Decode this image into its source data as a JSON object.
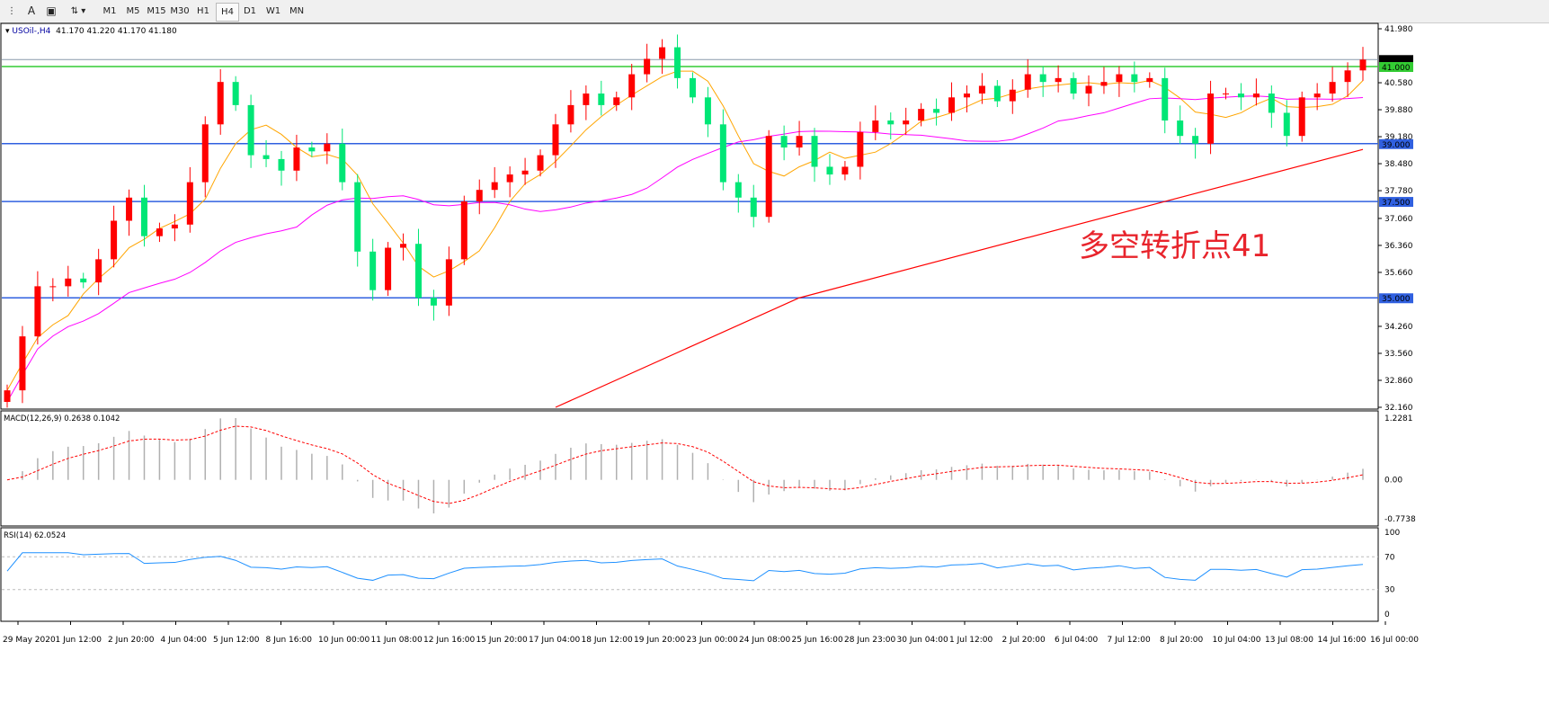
{
  "toolbar": {
    "icons": [
      "fibonacci-icon",
      "text-icon",
      "text-label-icon",
      "arrows-icon"
    ],
    "timeframes": [
      "M1",
      "M5",
      "M15",
      "M30",
      "H1",
      "H4",
      "D1",
      "W1",
      "MN"
    ],
    "active": "H4"
  },
  "header": {
    "symbol": "USOil-,H4",
    "ohlc": "41.170 41.220 41.170 41.180"
  },
  "annotation": "多空转折点41",
  "colors": {
    "bull": "#ff0000",
    "bear": "#00e676",
    "ma_fast": "#ffa500",
    "ma_mid": "#ff00ff",
    "ma_slow": "#ff0000",
    "level": "#3060e0",
    "level_green": "#33cc33",
    "rsi": "#1e90ff"
  },
  "chart_data": {
    "type": "candlestick",
    "price_axis": {
      "ticks": [
        "41.980",
        "40.580",
        "39.880",
        "39.180",
        "38.480",
        "37.780",
        "37.060",
        "36.360",
        "35.660",
        "34.260",
        "33.560",
        "32.860",
        "32.160"
      ],
      "range": [
        32.16,
        41.98
      ]
    },
    "closes": [
      32.6,
      34.0,
      35.3,
      35.3,
      35.5,
      35.4,
      36.0,
      37.0,
      37.6,
      36.6,
      36.8,
      36.9,
      38.0,
      39.5,
      40.6,
      40.0,
      38.7,
      38.6,
      38.3,
      38.9,
      38.8,
      39.0,
      38.0,
      36.2,
      35.2,
      36.3,
      36.4,
      35.0,
      34.8,
      36.0,
      37.5,
      37.8,
      38.0,
      38.2,
      38.3,
      38.7,
      39.5,
      40.0,
      40.3,
      40.0,
      40.2,
      40.8,
      41.2,
      41.5,
      40.7,
      40.2,
      39.5,
      38.0,
      37.6,
      37.1,
      39.2,
      38.9,
      39.2,
      38.4,
      38.2,
      38.4,
      39.3,
      39.6,
      39.5,
      39.6,
      39.9,
      39.8,
      40.2,
      40.3,
      40.5,
      40.1,
      40.4,
      40.8,
      40.6,
      40.7,
      40.3,
      40.5,
      40.6,
      40.8,
      40.6,
      40.7,
      39.6,
      39.2,
      39.0,
      40.3,
      40.3,
      40.2,
      40.3,
      39.8,
      39.2,
      40.2,
      40.3,
      40.6,
      40.9,
      41.18
    ],
    "ma_slow": [
      [
        0,
        30.2
      ],
      [
        20,
        31.2
      ],
      [
        36,
        32.16
      ],
      [
        52,
        35.0
      ],
      [
        76,
        37.5
      ],
      [
        89,
        38.85
      ]
    ],
    "levels": [
      {
        "value": 41.18,
        "label": "41.180",
        "color": "#8899aa"
      },
      {
        "value": 41.0,
        "label": "41.000",
        "color": "#33cc33"
      },
      {
        "value": 39.0,
        "label": "39.000",
        "color": "#3060e0"
      },
      {
        "value": 37.5,
        "label": "37.500",
        "color": "#3060e0"
      },
      {
        "value": 35.0,
        "label": "35.000",
        "color": "#3060e0"
      }
    ],
    "macd": {
      "label": "MACD(12,26,9) 0.2638 0.1042",
      "ticks": [
        "1.2281",
        "0.00",
        "-0.7738"
      ],
      "range": [
        -0.7738,
        1.2281
      ]
    },
    "rsi": {
      "label": "RSI(14) 62.0524",
      "ticks": [
        "100",
        "70",
        "30",
        "0"
      ],
      "levels": [
        70,
        30
      ]
    },
    "time_labels": [
      "29 May 2020",
      "1 Jun 12:00",
      "2 Jun 20:00",
      "4 Jun 04:00",
      "5 Jun 12:00",
      "8 Jun 16:00",
      "10 Jun 00:00",
      "11 Jun 08:00",
      "12 Jun 16:00",
      "15 Jun 20:00",
      "17 Jun 04:00",
      "18 Jun 12:00",
      "19 Jun 20:00",
      "23 Jun 00:00",
      "24 Jun 08:00",
      "25 Jun 16:00",
      "28 Jun 23:00",
      "30 Jun 04:00",
      "1 Jul 12:00",
      "2 Jul 20:00",
      "6 Jul 04:00",
      "7 Jul 12:00",
      "8 Jul 20:00",
      "10 Jul 04:00",
      "13 Jul 08:00",
      "14 Jul 16:00",
      "16 Jul 00:00"
    ]
  }
}
